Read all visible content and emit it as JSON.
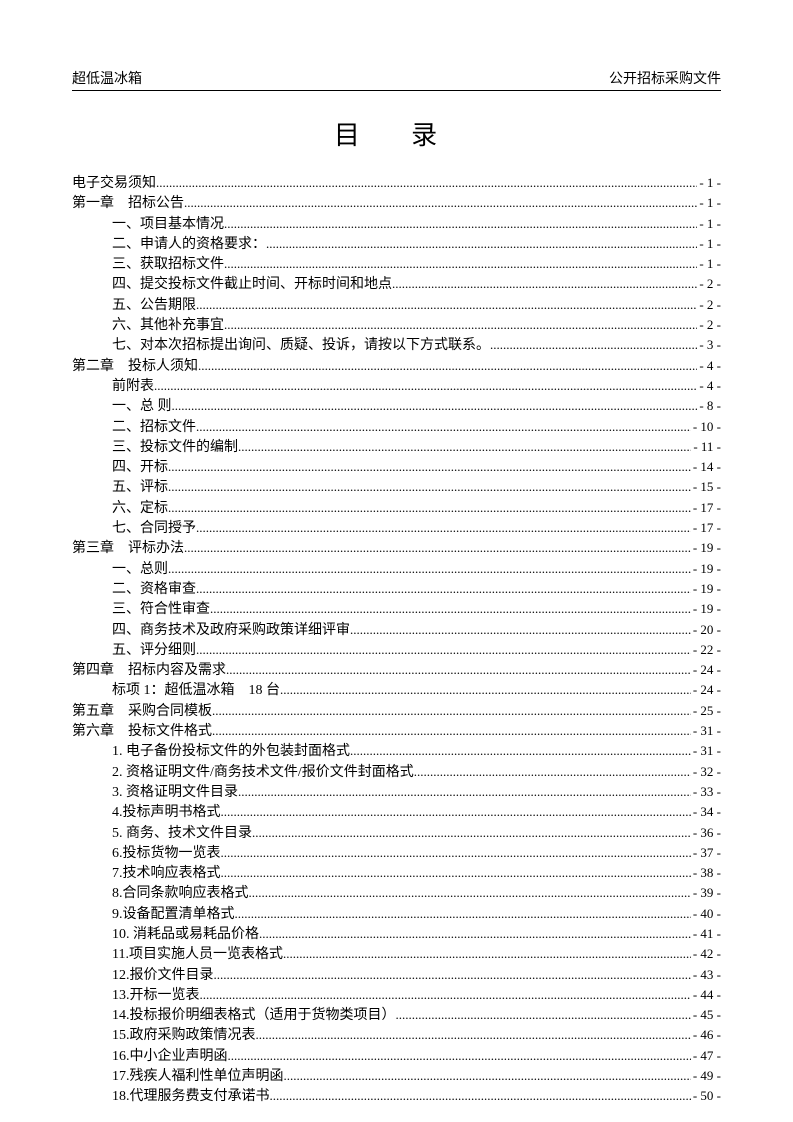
{
  "header": {
    "left": "超低温冰箱",
    "right": "公开招标采购文件"
  },
  "title": "目 录",
  "toc": [
    {
      "label": "电子交易须知",
      "page": "- 1 -",
      "indent": 0
    },
    {
      "label": "第一章　招标公告",
      "page": "- 1 -",
      "indent": 0
    },
    {
      "label": "一、项目基本情况",
      "page": "- 1 -",
      "indent": 1
    },
    {
      "label": "二、申请人的资格要求：",
      "page": "- 1 -",
      "indent": 1
    },
    {
      "label": "三、获取招标文件",
      "page": "- 1 -",
      "indent": 1
    },
    {
      "label": "四、提交投标文件截止时间、开标时间和地点",
      "page": "- 2 -",
      "indent": 1
    },
    {
      "label": "五、公告期限",
      "page": "- 2 -",
      "indent": 1
    },
    {
      "label": "六、其他补充事宜",
      "page": "- 2 -",
      "indent": 1
    },
    {
      "label": "七、对本次招标提出询问、质疑、投诉，请按以下方式联系。",
      "page": "- 3 -",
      "indent": 1
    },
    {
      "label": "第二章　投标人须知",
      "page": "- 4 -",
      "indent": 0
    },
    {
      "label": "前附表",
      "page": "- 4 -",
      "indent": 1
    },
    {
      "label": "一、总 则",
      "page": "- 8 -",
      "indent": 1
    },
    {
      "label": "二、招标文件",
      "page": "- 10 -",
      "indent": 1
    },
    {
      "label": "三、投标文件的编制",
      "page": "- 11 -",
      "indent": 1
    },
    {
      "label": "四、开标",
      "page": "- 14 -",
      "indent": 1
    },
    {
      "label": "五、评标",
      "page": "- 15 -",
      "indent": 1
    },
    {
      "label": "六、定标",
      "page": "- 17 -",
      "indent": 1
    },
    {
      "label": "七、合同授予",
      "page": "- 17 -",
      "indent": 1
    },
    {
      "label": "第三章　评标办法",
      "page": "- 19 -",
      "indent": 0
    },
    {
      "label": "一、总则",
      "page": "- 19 -",
      "indent": 1
    },
    {
      "label": "二、资格审查",
      "page": "- 19 -",
      "indent": 1
    },
    {
      "label": "三、符合性审查",
      "page": "- 19 -",
      "indent": 1
    },
    {
      "label": "四、商务技术及政府采购政策详细评审",
      "page": "- 20 -",
      "indent": 1
    },
    {
      "label": "五、评分细则",
      "page": "- 22 -",
      "indent": 1
    },
    {
      "label": "第四章　招标内容及需求",
      "page": "- 24 -",
      "indent": 0
    },
    {
      "label": "标项 1：超低温冰箱　18 台",
      "page": "- 24 -",
      "indent": 1
    },
    {
      "label": "第五章　采购合同模板",
      "page": "- 25 -",
      "indent": 0
    },
    {
      "label": "第六章　投标文件格式",
      "page": "- 31 -",
      "indent": 0
    },
    {
      "label": "1. 电子备份投标文件的外包装封面格式",
      "page": "- 31 -",
      "indent": 1
    },
    {
      "label": "2. 资格证明文件/商务技术文件/报价文件封面格式",
      "page": "- 32 -",
      "indent": 1
    },
    {
      "label": "3. 资格证明文件目录",
      "page": "- 33 -",
      "indent": 1
    },
    {
      "label": "4.投标声明书格式",
      "page": "- 34 -",
      "indent": 1
    },
    {
      "label": "5. 商务、技术文件目录",
      "page": "- 36 -",
      "indent": 1
    },
    {
      "label": "6.投标货物一览表",
      "page": "- 37 -",
      "indent": 1
    },
    {
      "label": "7.技术响应表格式",
      "page": "- 38 -",
      "indent": 1
    },
    {
      "label": "8.合同条款响应表格式",
      "page": "- 39 -",
      "indent": 1
    },
    {
      "label": "9.设备配置清单格式",
      "page": "- 40 -",
      "indent": 1
    },
    {
      "label": "10. 消耗品或易耗品价格",
      "page": "- 41 -",
      "indent": 1
    },
    {
      "label": "11.项目实施人员一览表格式",
      "page": "- 42 -",
      "indent": 1
    },
    {
      "label": "12.报价文件目录",
      "page": "- 43 -",
      "indent": 1
    },
    {
      "label": "13.开标一览表",
      "page": "- 44 -",
      "indent": 1
    },
    {
      "label": "14.投标报价明细表格式（适用于货物类项目）",
      "page": "- 45 -",
      "indent": 1
    },
    {
      "label": "15.政府采购政策情况表",
      "page": "- 46 -",
      "indent": 1
    },
    {
      "label": "16.中小企业声明函",
      "page": "- 47 -",
      "indent": 1
    },
    {
      "label": "17.残疾人福利性单位声明函",
      "page": "- 49 -",
      "indent": 1
    },
    {
      "label": "18.代理服务费支付承诺书",
      "page": "- 50 -",
      "indent": 1
    }
  ]
}
